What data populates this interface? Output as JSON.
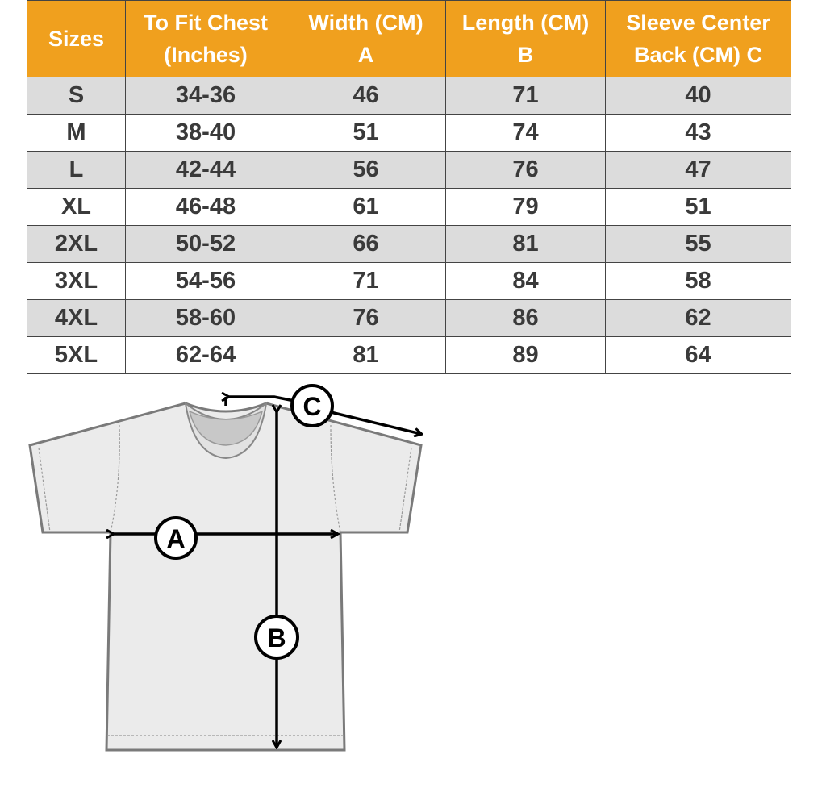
{
  "header_color": "#f0a01e",
  "columns": [
    {
      "line1": "Sizes",
      "line2": ""
    },
    {
      "line1": "To Fit Chest",
      "line2": "(Inches)"
    },
    {
      "line1": "Width (CM)",
      "line2": "A"
    },
    {
      "line1": "Length  (CM)",
      "line2": "B"
    },
    {
      "line1": "Sleeve Center",
      "line2": "Back (CM) C"
    }
  ],
  "rows": [
    [
      "S",
      "34-36",
      "46",
      "71",
      "40"
    ],
    [
      "M",
      "38-40",
      "51",
      "74",
      "43"
    ],
    [
      "L",
      "42-44",
      "56",
      "76",
      "47"
    ],
    [
      "XL",
      "46-48",
      "61",
      "79",
      "51"
    ],
    [
      "2XL",
      "50-52",
      "66",
      "81",
      "55"
    ],
    [
      "3XL",
      "54-56",
      "71",
      "84",
      "58"
    ],
    [
      "4XL",
      "58-60",
      "76",
      "86",
      "62"
    ],
    [
      "5XL",
      "62-64",
      "81",
      "89",
      "64"
    ]
  ],
  "diagram": {
    "label_a": "A",
    "label_b": "B",
    "label_c": "C"
  }
}
